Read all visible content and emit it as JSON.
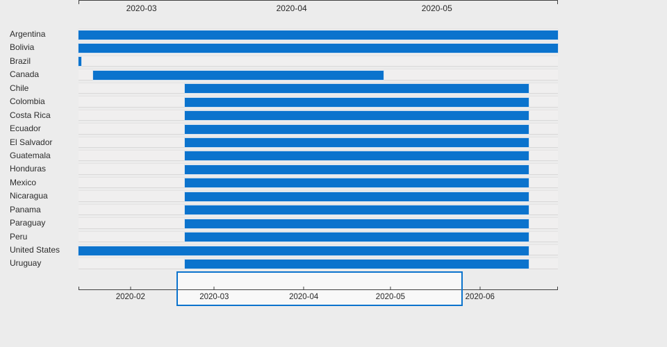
{
  "app": {
    "background": "#ececec"
  },
  "chart_data": {
    "type": "gantt",
    "title": "",
    "description": "Horizontal timeline bars per country with a top date axis, plus an overview date axis below with a brush selection",
    "colors": {
      "bar": "#0b73cd",
      "brush_border": "#0b73cd",
      "axis": "#3f3f3f",
      "row_track": "#f0efef",
      "background": "#ececec"
    },
    "layout_hints": {
      "legend": "none",
      "grid": "row tracks only",
      "main_axis_position": "top",
      "overview_axis_position": "bottom"
    },
    "main_chart": {
      "domain": [
        "2020-02-17",
        "2020-05-26"
      ],
      "ticks": [
        {
          "label": "2020-03",
          "date": "2020-03-01"
        },
        {
          "label": "2020-04",
          "date": "2020-04-01"
        },
        {
          "label": "2020-05",
          "date": "2020-05-01"
        }
      ],
      "bars": [
        {
          "label": "Argentina",
          "start": "2020-02-17",
          "end": "2020-05-26"
        },
        {
          "label": "Bolivia",
          "start": "2020-02-17",
          "end": "2020-05-26"
        },
        {
          "label": "Brazil",
          "start": "2020-02-17",
          "end": "2020-02-17"
        },
        {
          "label": "Canada",
          "start": "2020-02-20",
          "end": "2020-04-20"
        },
        {
          "label": "Chile",
          "start": "2020-03-10",
          "end": "2020-05-20"
        },
        {
          "label": "Colombia",
          "start": "2020-03-10",
          "end": "2020-05-20"
        },
        {
          "label": "Costa Rica",
          "start": "2020-03-10",
          "end": "2020-05-20"
        },
        {
          "label": "Ecuador",
          "start": "2020-03-10",
          "end": "2020-05-20"
        },
        {
          "label": "El Salvador",
          "start": "2020-03-10",
          "end": "2020-05-20"
        },
        {
          "label": "Guatemala",
          "start": "2020-03-10",
          "end": "2020-05-20"
        },
        {
          "label": "Honduras",
          "start": "2020-03-10",
          "end": "2020-05-20"
        },
        {
          "label": "Mexico",
          "start": "2020-03-10",
          "end": "2020-05-20"
        },
        {
          "label": "Nicaragua",
          "start": "2020-03-10",
          "end": "2020-05-20"
        },
        {
          "label": "Panama",
          "start": "2020-03-10",
          "end": "2020-05-20"
        },
        {
          "label": "Paraguay",
          "start": "2020-03-10",
          "end": "2020-05-20"
        },
        {
          "label": "Peru",
          "start": "2020-03-10",
          "end": "2020-05-20"
        },
        {
          "label": "United States",
          "start": "2020-02-17",
          "end": "2020-05-20"
        },
        {
          "label": "Uruguay",
          "start": "2020-03-10",
          "end": "2020-05-20"
        }
      ]
    },
    "overview": {
      "domain": [
        "2020-01-14",
        "2020-06-28"
      ],
      "ticks": [
        {
          "label": "2020-02",
          "date": "2020-02-01"
        },
        {
          "label": "2020-03",
          "date": "2020-03-01"
        },
        {
          "label": "2020-04",
          "date": "2020-04-01"
        },
        {
          "label": "2020-05",
          "date": "2020-05-01"
        },
        {
          "label": "2020-06",
          "date": "2020-06-01"
        }
      ],
      "brush": {
        "start": "2020-02-17",
        "end": "2020-05-26"
      }
    }
  }
}
